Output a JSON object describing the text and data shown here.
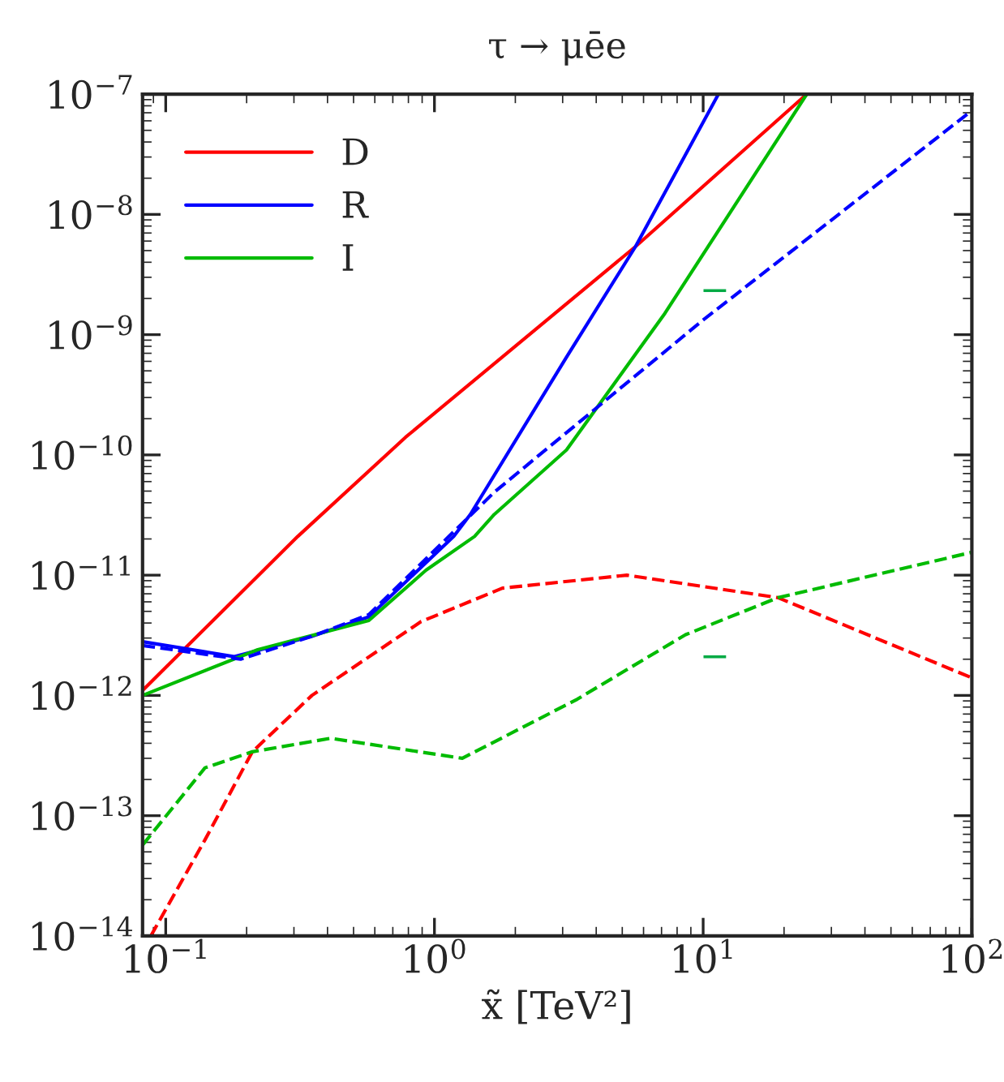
{
  "chart_data": {
    "type": "line",
    "title": "τ → μēe",
    "xlabel": "x̃ [TeV²]",
    "log": "xy",
    "grid": false,
    "legend": "top left",
    "marker": "none",
    "xlim": [
      0.082,
      100
    ],
    "ylim": [
      1e-14,
      1e-07
    ],
    "xticks": [
      {
        "value": 0.1,
        "label": "10$^{−1}$"
      },
      {
        "value": 1,
        "label": "10$^{0}$"
      },
      {
        "value": 10,
        "label": "10$^{1}$"
      },
      {
        "value": 100,
        "label": "10$^{2}$"
      }
    ],
    "yticks": [
      {
        "value": 1e-14,
        "label": "10$^{−14}$"
      },
      {
        "value": 1e-13,
        "label": "10$^{−13}$"
      },
      {
        "value": 1e-12,
        "label": "10$^{−12}$"
      },
      {
        "value": 1e-11,
        "label": "10$^{−11}$"
      },
      {
        "value": 1e-10,
        "label": "10$^{−10}$"
      },
      {
        "value": 1e-09,
        "label": "10$^{−9}$"
      },
      {
        "value": 1e-08,
        "label": "10$^{−8}$"
      },
      {
        "value": 1e-07,
        "label": "10$^{−7}$"
      }
    ],
    "series": [
      {
        "name": "D",
        "color": "#ff0000",
        "line_style": "solid",
        "x": [
          0.082,
          0.31,
          0.78,
          5.6,
          24.3
        ],
        "values": [
          1.1e-12,
          2.1e-11,
          1.4e-10,
          5.4e-09,
          1e-07
        ]
      },
      {
        "name": "R",
        "color": "#0000ff",
        "line_style": "solid",
        "x": [
          0.082,
          0.18,
          0.35,
          0.57,
          1.18,
          1.36,
          3.1,
          5.6,
          11.4
        ],
        "values": [
          2.8e-12,
          2.1e-12,
          3.1e-12,
          4.5e-12,
          2.1e-11,
          3.2e-11,
          6.5e-10,
          5.4e-09,
          1e-07
        ]
      },
      {
        "name": "I",
        "color": "#00bb00",
        "line_style": "solid",
        "x": [
          0.082,
          0.22,
          0.57,
          0.93,
          1.41,
          1.67,
          3.1,
          7.2,
          24.3
        ],
        "values": [
          1e-12,
          2.4e-12,
          4.2e-12,
          1.1e-11,
          2.1e-11,
          3.2e-11,
          1.1e-10,
          1.5e-09,
          1e-07
        ]
      },
      {
        "color": "#ff0000",
        "line_style": "dashed",
        "x": [
          0.088,
          0.14,
          0.21,
          0.35,
          0.89,
          1.79,
          5.2,
          19,
          100
        ],
        "values": [
          1e-14,
          6.3e-14,
          3.4e-13,
          1e-12,
          4.1e-12,
          7.8e-12,
          1e-11,
          6.5e-12,
          1.4e-12
        ]
      },
      {
        "color": "#0000ff",
        "line_style": "dashed",
        "x": [
          0.082,
          0.19,
          0.35,
          0.57,
          1.18,
          1.67,
          9.9,
          100
        ],
        "values": [
          2.6e-12,
          2e-12,
          3.1e-12,
          4.7e-12,
          2.3e-11,
          4.9e-11,
          1.3e-09,
          7.3e-08
        ]
      },
      {
        "color": "#00bb00",
        "line_style": "dashed",
        "x": [
          0.082,
          0.14,
          0.21,
          0.41,
          1.27,
          3.4,
          8.6,
          19,
          100
        ],
        "values": [
          5.7e-14,
          2.5e-13,
          3.4e-13,
          4.4e-13,
          3e-13,
          9.3e-13,
          3.2e-12,
          6.5e-12,
          1.55e-11
        ]
      }
    ],
    "annotations": [
      "−",
      "−"
    ]
  }
}
